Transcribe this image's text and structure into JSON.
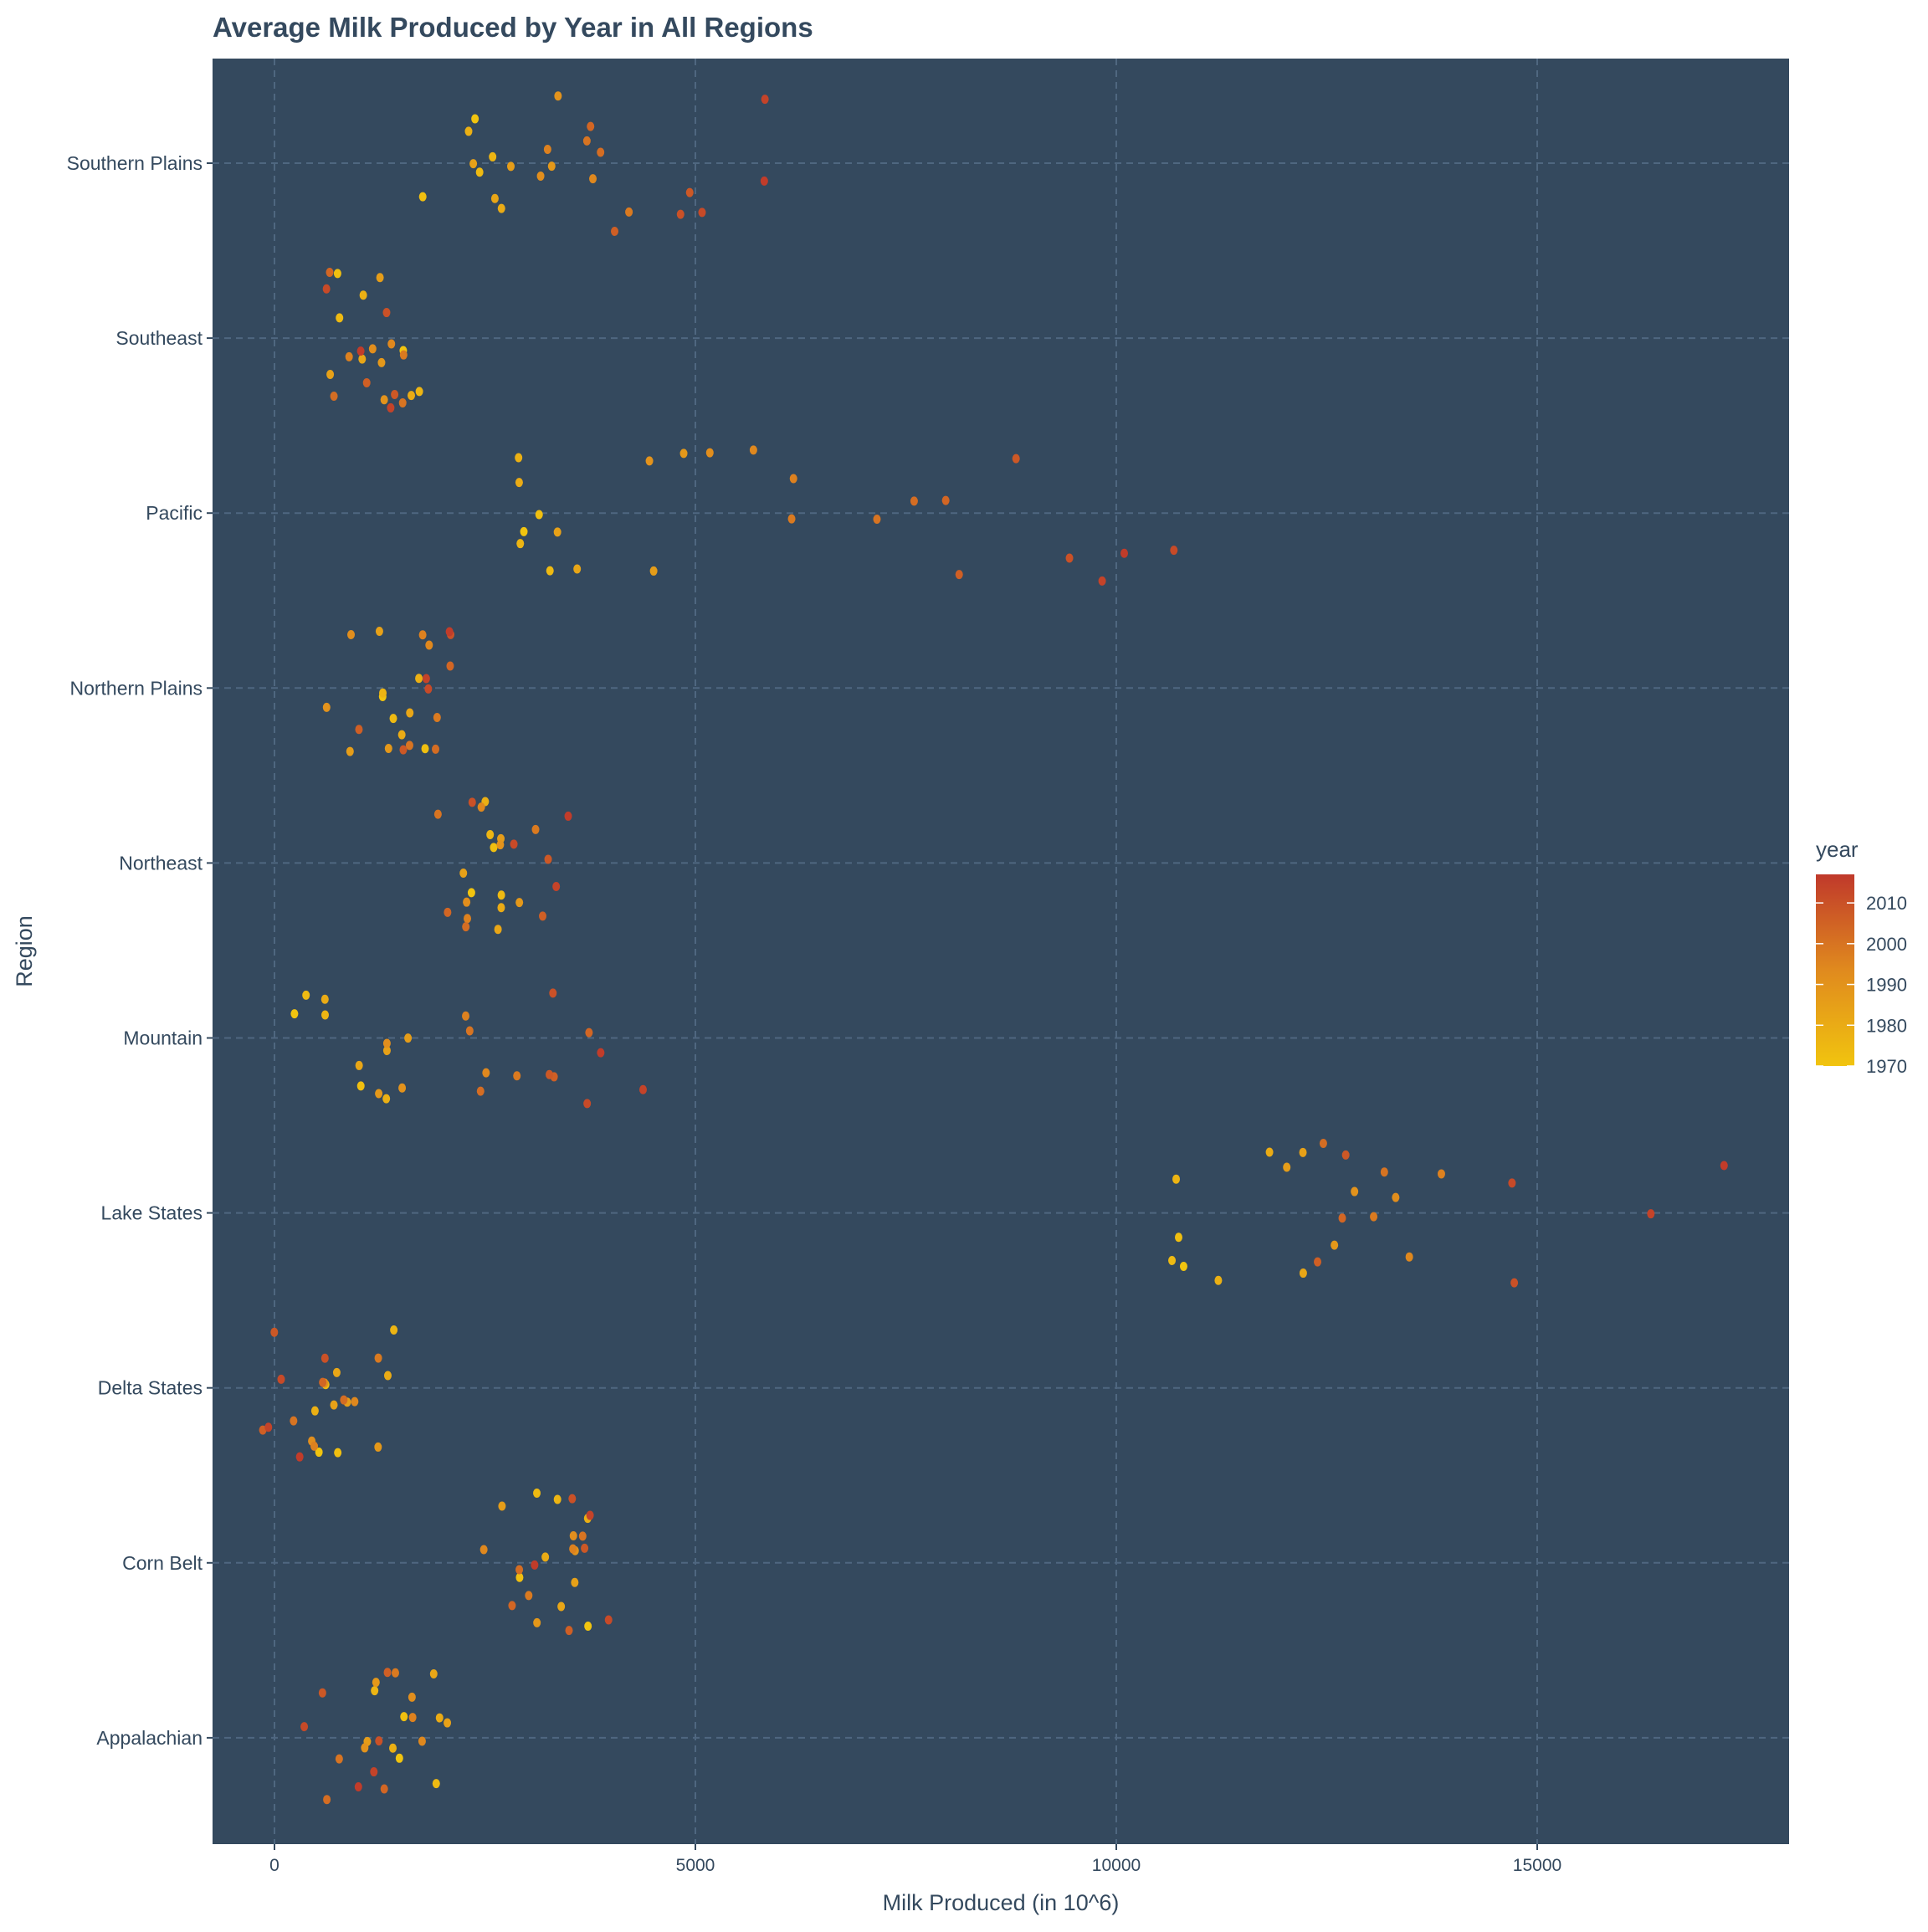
{
  "chart_data": {
    "type": "scatter",
    "title": "Average Milk Produced by Year in All Regions",
    "xlabel": "Milk Produced (in 10^6)",
    "ylabel": "Region",
    "xlim": [
      -700,
      18000
    ],
    "x_ticks": [
      0,
      5000,
      10000,
      15000
    ],
    "x_tick_labels": [
      "0",
      "5000",
      "10000",
      "15000"
    ],
    "categories": [
      "Southern Plains",
      "Southeast",
      "Pacific",
      "Northern Plains",
      "Northeast",
      "Mountain",
      "Lake States",
      "Delta States",
      "Corn Belt",
      "Appalachian"
    ],
    "grid": true,
    "jitter": true,
    "background_color": "#34495E",
    "legend": {
      "title": "year",
      "placement": "right",
      "type": "colorbar",
      "range": [
        1970,
        2017
      ],
      "ticks": [
        2010,
        2000,
        1990,
        1980,
        1970
      ],
      "tick_labels": [
        "2010",
        "2000",
        "1990",
        "1980",
        "1970"
      ],
      "colors": [
        "#F1C40F",
        "#E08A1E",
        "#C0392B"
      ]
    },
    "years": [
      1970,
      1972,
      1974,
      1976,
      1978,
      1980,
      1982,
      1984,
      1986,
      1988,
      1990,
      1992,
      1994,
      1996,
      1998,
      2000,
      2002,
      2004,
      2006,
      2008,
      2010,
      2012,
      2014,
      2016
    ],
    "series": [
      {
        "region": "Southern Plains",
        "values": [
          2100,
          2150,
          2200,
          2250,
          2300,
          2400,
          2600,
          2800,
          3000,
          3150,
          3300,
          3400,
          3500,
          3600,
          3700,
          3800,
          3900,
          4100,
          4300,
          4800,
          5000,
          5200,
          5500,
          6300
        ]
      },
      {
        "region": "Southeast",
        "values": [
          1050,
          1100,
          1150,
          1200,
          1100,
          1050,
          1150,
          1200,
          1250,
          1100,
          1150,
          1200,
          1100,
          1050,
          1200,
          1150,
          1100,
          1050,
          1000,
          1050,
          1100,
          1000,
          1050,
          1000
        ]
      },
      {
        "region": "Pacific",
        "values": [
          2700,
          2750,
          2800,
          3100,
          3300,
          3500,
          3700,
          3900,
          4100,
          4400,
          4700,
          5000,
          5400,
          5800,
          6500,
          6900,
          7600,
          8200,
          8700,
          9200,
          9800,
          10100,
          9900,
          10000
        ]
      },
      {
        "region": "Northern Plains",
        "values": [
          1300,
          1350,
          1400,
          1450,
          1400,
          1300,
          1250,
          1200,
          1150,
          1100,
          1150,
          1200,
          1250,
          1300,
          1350,
          1400,
          1450,
          1500,
          1450,
          1600,
          1700,
          1800,
          1900,
          1950
        ]
      },
      {
        "region": "Northeast",
        "values": [
          2100,
          2150,
          2200,
          2250,
          2300,
          2250,
          2350,
          2400,
          2450,
          2500,
          2400,
          2450,
          2550,
          2600,
          2550,
          2500,
          2600,
          2650,
          2600,
          2700,
          2650,
          2750,
          2800,
          2900
        ]
      },
      {
        "region": "Mountain",
        "values": [
          600,
          650,
          700,
          750,
          800,
          850,
          900,
          1000,
          1100,
          1200,
          1400,
          1700,
          2000,
          2300,
          2500,
          2800,
          3000,
          3300,
          3500,
          3700,
          3900,
          4000,
          4200,
          4400
        ]
      },
      {
        "region": "Lake States",
        "values": [
          10800,
          10850,
          10900,
          11100,
          11300,
          11500,
          11800,
          12100,
          12300,
          12500,
          12700,
          12900,
          13100,
          13400,
          13500,
          13600,
          12300,
          12500,
          12700,
          13000,
          14200,
          15000,
          16000,
          17100
        ]
      },
      {
        "region": "Delta States",
        "values": [
          900,
          900,
          880,
          870,
          860,
          850,
          860,
          880,
          900,
          880,
          850,
          820,
          780,
          700,
          650,
          600,
          550,
          450,
          380,
          320,
          260,
          200,
          160,
          130
        ]
      },
      {
        "region": "Corn Belt",
        "values": [
          3200,
          3250,
          3300,
          3350,
          3400,
          3450,
          3350,
          3300,
          3250,
          3200,
          3150,
          3100,
          3050,
          3000,
          3050,
          3100,
          3150,
          3200,
          3250,
          3300,
          3350,
          3400,
          3450,
          3550
        ]
      },
      {
        "region": "Appalachian",
        "values": [
          1650,
          1700,
          1700,
          1680,
          1650,
          1650,
          1600,
          1600,
          1550,
          1500,
          1450,
          1400,
          1350,
          1300,
          1250,
          1200,
          1150,
          1100,
          1050,
          1000,
          1000,
          950,
          950,
          900
        ]
      }
    ]
  }
}
